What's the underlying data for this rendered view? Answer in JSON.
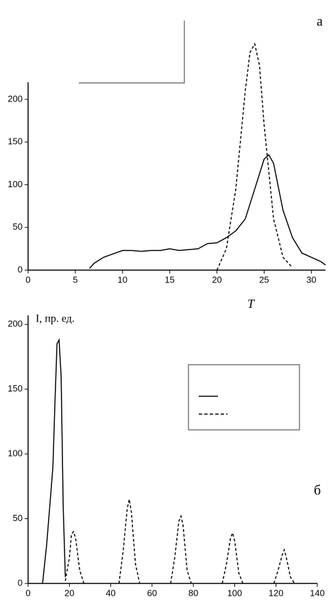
{
  "chart_data": [
    {
      "type": "line",
      "annotation": "а",
      "x_label": "T",
      "xlim": [
        0,
        31.5
      ],
      "xticks": [
        0,
        5,
        10,
        15,
        20,
        25,
        30
      ],
      "ylim": [
        0,
        220
      ],
      "yticks": [
        0,
        50,
        100,
        150,
        200
      ],
      "series": [
        {
          "color": "#000",
          "dash": false,
          "x": [
            6.5,
            7,
            8,
            9,
            10,
            11,
            12,
            13,
            14,
            15,
            16,
            17,
            18,
            19,
            20,
            21,
            22,
            23,
            24,
            25,
            25.5,
            26,
            27,
            28,
            29,
            30,
            31,
            31.5
          ],
          "values": [
            2,
            8,
            15,
            19,
            23,
            23,
            22,
            23,
            23,
            25,
            23,
            24,
            25,
            31,
            32,
            38,
            46,
            60,
            95,
            130,
            135,
            125,
            70,
            38,
            20,
            15,
            10,
            6
          ]
        },
        {
          "color": "#000",
          "dash": true,
          "x": [
            20,
            21,
            22,
            23,
            23.5,
            24,
            24.5,
            25,
            26,
            27,
            28
          ],
          "values": [
            0,
            25,
            95,
            210,
            255,
            265,
            240,
            170,
            60,
            15,
            3
          ]
        }
      ]
    },
    {
      "type": "line",
      "annotation": "б",
      "y_label": "I,  пр. ед.",
      "xlim": [
        0,
        140
      ],
      "xticks": [
        0,
        20,
        40,
        60,
        80,
        100,
        120,
        140
      ],
      "ylim": [
        0,
        207
      ],
      "yticks": [
        0,
        50,
        100,
        150,
        200
      ],
      "series": [
        {
          "color": "#000",
          "dash": false,
          "x": [
            7,
            9,
            11,
            12,
            13,
            14,
            15,
            16,
            17,
            18
          ],
          "values": [
            0,
            30,
            70,
            90,
            140,
            185,
            188,
            160,
            60,
            5
          ]
        },
        {
          "color": "#000",
          "dash": true,
          "x": [
            18,
            20,
            21,
            22,
            23,
            25,
            27,
            35,
            44,
            46,
            48,
            49,
            50,
            52,
            54,
            60,
            69,
            71,
            73,
            74,
            75,
            77,
            79,
            85,
            94,
            96,
            98,
            99,
            100,
            102,
            104,
            110,
            119,
            121,
            123,
            124,
            125,
            127,
            129
          ],
          "values": [
            2,
            20,
            38,
            40,
            35,
            10,
            0,
            null,
            0,
            25,
            58,
            65,
            55,
            15,
            0,
            null,
            0,
            20,
            48,
            52,
            45,
            10,
            0,
            null,
            0,
            15,
            35,
            39,
            33,
            8,
            0,
            null,
            0,
            10,
            22,
            26,
            20,
            5,
            0
          ]
        }
      ]
    }
  ]
}
